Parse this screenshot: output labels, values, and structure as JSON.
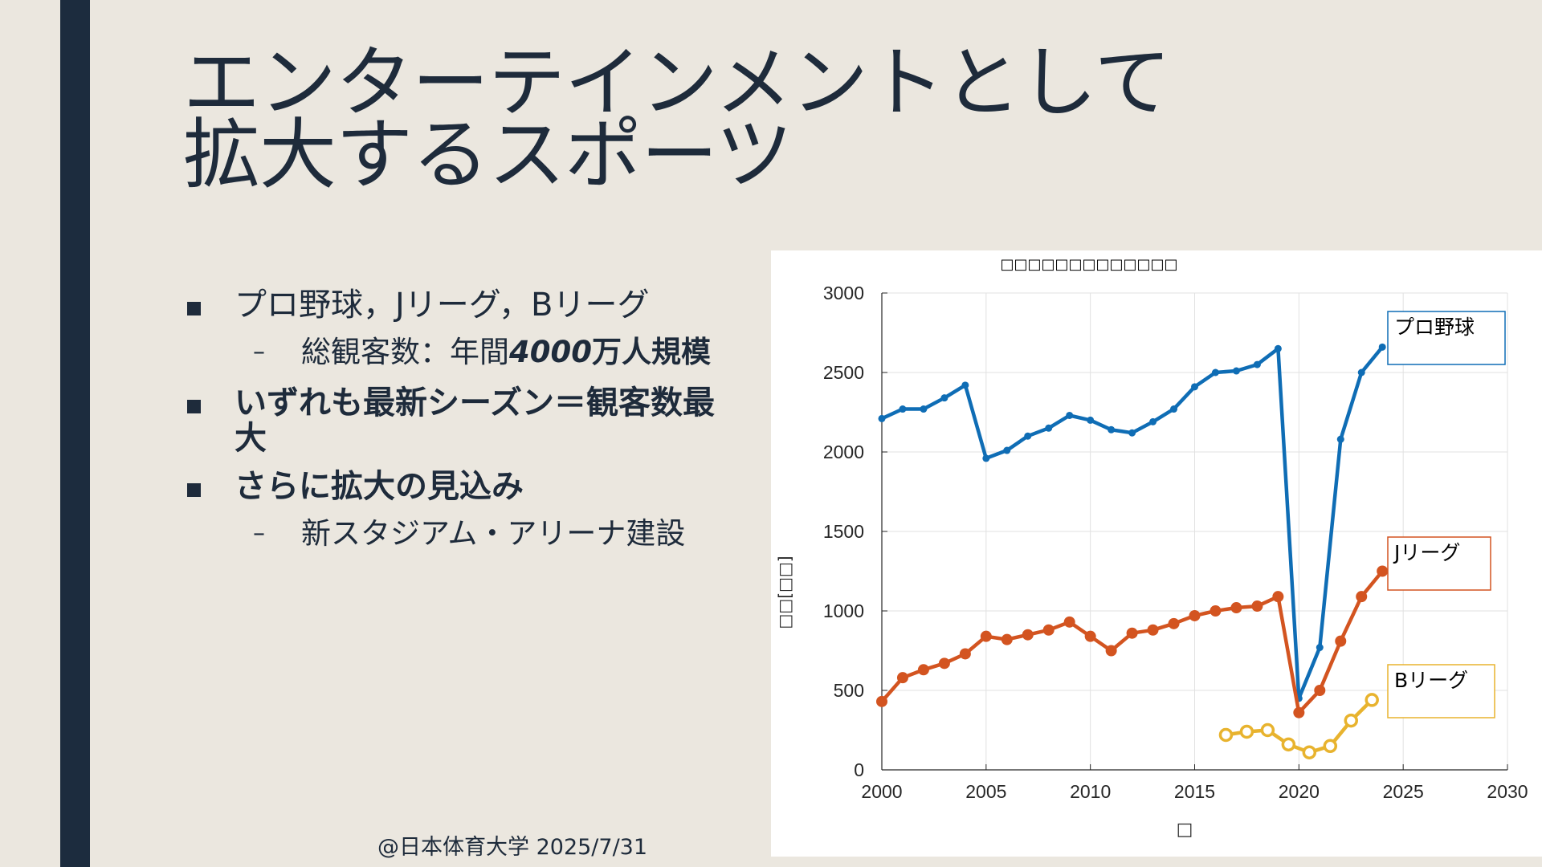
{
  "slide": {
    "title_lines": [
      "エンターテインメントとして",
      "拡大するスポーツ"
    ],
    "bullets": {
      "b1": "プロ野球，Jリーグ，Bリーグ",
      "b1_sub_prefix": "総観客数：年間",
      "b1_sub_emph": "4000",
      "b1_sub_suffix": "万人規模",
      "b2": "いずれも最新シーズン＝観客数最大",
      "b3": "さらに拡大の見込み",
      "b3_sub": "新スタジアム・アリーナ建設"
    },
    "footer": "@日本体育大学 2025/7/31",
    "colors": {
      "background": "#ebe7df",
      "accent_bar": "#1c2c3e",
      "text": "#1e2b3b"
    }
  },
  "chart_data": {
    "type": "line",
    "title": "□□□□□□□□□□□□□",
    "xlabel": "□",
    "ylabel": "□□[□□]",
    "xlim": [
      2000,
      2030
    ],
    "ylim": [
      0,
      3000
    ],
    "xticks": [
      2000,
      2005,
      2010,
      2015,
      2020,
      2025,
      2030
    ],
    "yticks": [
      0,
      500,
      1000,
      1500,
      2000,
      2500,
      3000
    ],
    "grid": true,
    "series": [
      {
        "name": "プロ野球",
        "color": "#0f6db5",
        "marker": "dot",
        "points": [
          [
            2000,
            2210
          ],
          [
            2001,
            2270
          ],
          [
            2002,
            2270
          ],
          [
            2003,
            2340
          ],
          [
            2004,
            2420
          ],
          [
            2005,
            1960
          ],
          [
            2006,
            2010
          ],
          [
            2007,
            2100
          ],
          [
            2008,
            2150
          ],
          [
            2009,
            2230
          ],
          [
            2010,
            2200
          ],
          [
            2011,
            2140
          ],
          [
            2012,
            2120
          ],
          [
            2013,
            2190
          ],
          [
            2014,
            2270
          ],
          [
            2015,
            2410
          ],
          [
            2016,
            2500
          ],
          [
            2017,
            2510
          ],
          [
            2018,
            2550
          ],
          [
            2019,
            2650
          ],
          [
            2020,
            450
          ],
          [
            2021,
            770
          ],
          [
            2022,
            2080
          ],
          [
            2023,
            2500
          ],
          [
            2024,
            2660
          ]
        ]
      },
      {
        "name": "Jリーグ",
        "color": "#d35420",
        "marker": "filled-circle",
        "points": [
          [
            2000,
            430
          ],
          [
            2001,
            580
          ],
          [
            2002,
            630
          ],
          [
            2003,
            670
          ],
          [
            2004,
            730
          ],
          [
            2005,
            840
          ],
          [
            2006,
            820
          ],
          [
            2007,
            850
          ],
          [
            2008,
            880
          ],
          [
            2009,
            930
          ],
          [
            2010,
            840
          ],
          [
            2011,
            750
          ],
          [
            2012,
            860
          ],
          [
            2013,
            880
          ],
          [
            2014,
            920
          ],
          [
            2015,
            970
          ],
          [
            2016,
            1000
          ],
          [
            2017,
            1020
          ],
          [
            2018,
            1030
          ],
          [
            2019,
            1090
          ],
          [
            2020,
            360
          ],
          [
            2021,
            500
          ],
          [
            2022,
            810
          ],
          [
            2023,
            1090
          ],
          [
            2024,
            1250
          ]
        ]
      },
      {
        "name": "Bリーグ",
        "color": "#e8b32e",
        "marker": "open-circle",
        "points": [
          [
            2016.5,
            220
          ],
          [
            2017.5,
            240
          ],
          [
            2018.5,
            250
          ],
          [
            2019.5,
            160
          ],
          [
            2020.5,
            110
          ],
          [
            2021.5,
            150
          ],
          [
            2022.5,
            310
          ],
          [
            2023.5,
            440
          ]
        ]
      }
    ]
  }
}
